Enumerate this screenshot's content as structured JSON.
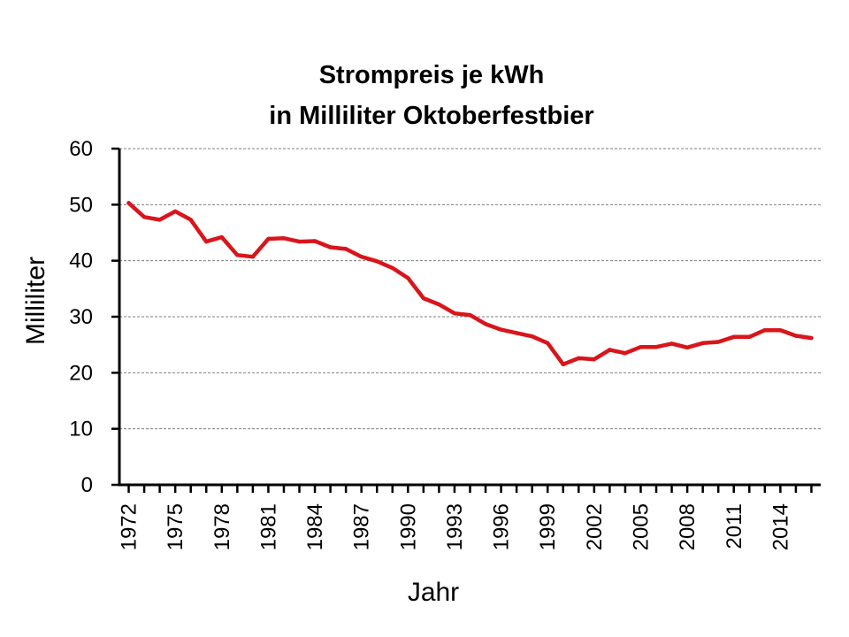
{
  "chart_data": {
    "type": "line",
    "title": [
      "Strompreis je kWh",
      "in Milliliter Oktoberfestbier"
    ],
    "xlabel": "Jahr",
    "ylabel": "Milliliter",
    "ylim": [
      0,
      60
    ],
    "yticks": [
      0,
      10,
      20,
      30,
      40,
      50,
      60
    ],
    "xlim": [
      1972,
      2016
    ],
    "xtick_labels": [
      1972,
      1975,
      1978,
      1981,
      1984,
      1987,
      1990,
      1993,
      1996,
      1999,
      2002,
      2005,
      2008,
      2011,
      2014
    ],
    "grid": "horizontal-dashed",
    "color": "#d9151b",
    "x": [
      1972,
      1973,
      1974,
      1975,
      1976,
      1977,
      1978,
      1979,
      1980,
      1981,
      1982,
      1983,
      1984,
      1985,
      1986,
      1987,
      1988,
      1989,
      1990,
      1991,
      1992,
      1993,
      1994,
      1995,
      1996,
      1997,
      1998,
      1999,
      2000,
      2001,
      2002,
      2003,
      2004,
      2005,
      2006,
      2007,
      2008,
      2009,
      2010,
      2011,
      2012,
      2013,
      2014,
      2015,
      2016
    ],
    "values": [
      50.3,
      47.8,
      47.3,
      48.8,
      47.3,
      43.4,
      44.2,
      41.0,
      40.7,
      43.9,
      44.0,
      43.4,
      43.5,
      42.4,
      42.1,
      40.7,
      39.9,
      38.7,
      36.9,
      33.3,
      32.2,
      30.6,
      30.3,
      28.7,
      27.7,
      27.1,
      26.5,
      25.3,
      21.5,
      22.6,
      22.4,
      24.1,
      23.5,
      24.6,
      24.6,
      25.2,
      24.5,
      25.3,
      25.5,
      26.4,
      26.4,
      27.6,
      27.6,
      26.6,
      26.2
    ]
  }
}
